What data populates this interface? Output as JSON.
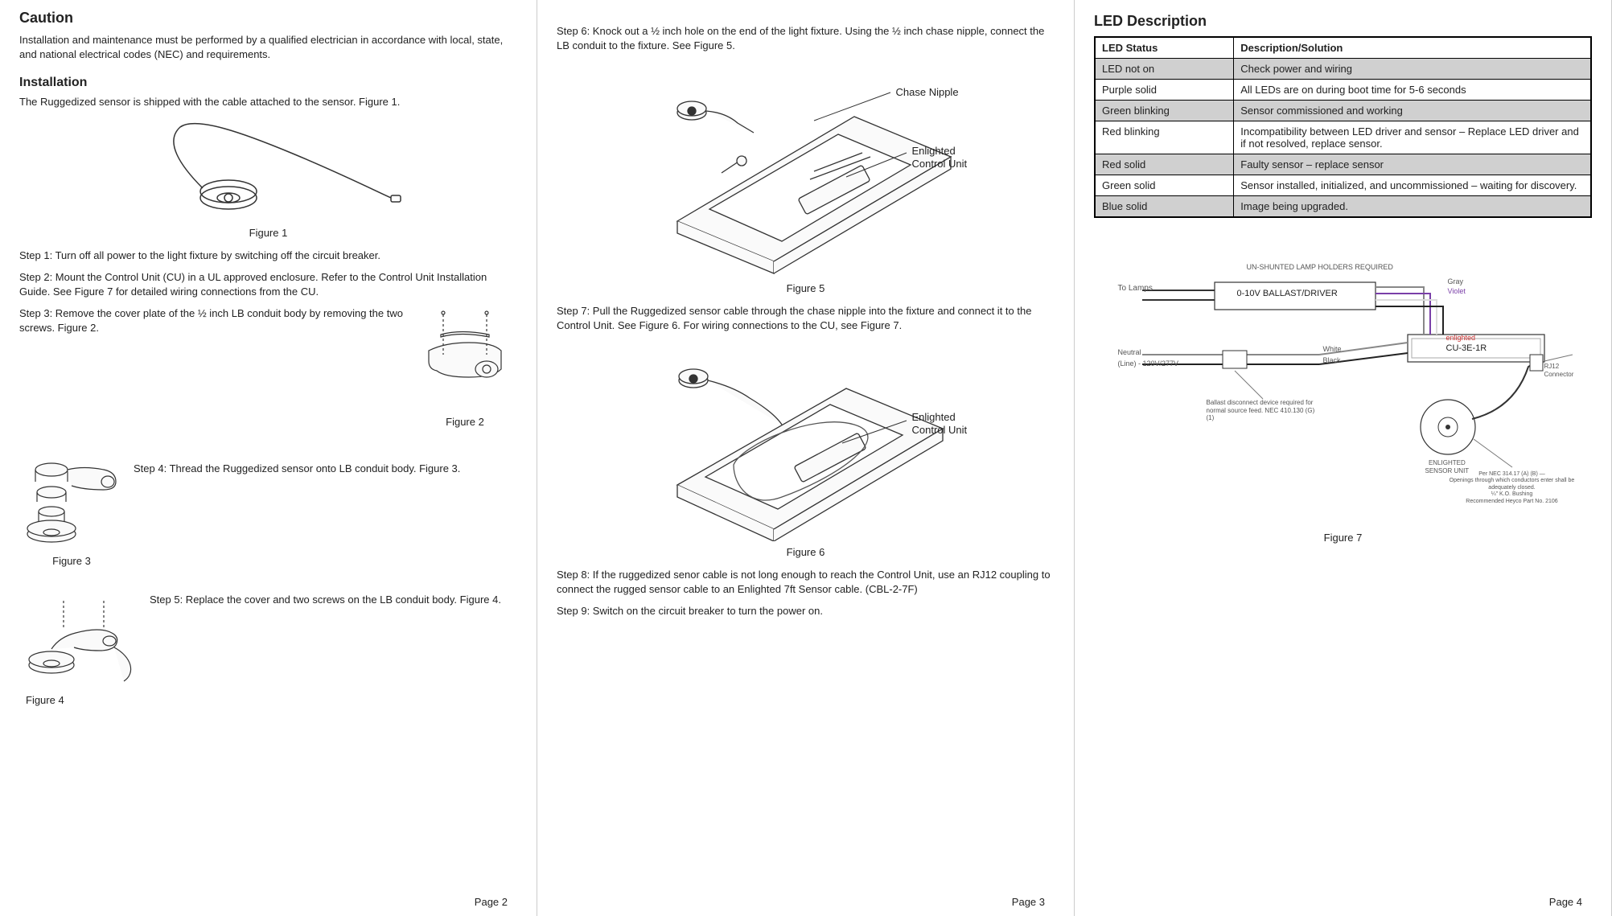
{
  "col1": {
    "caution_heading": "Caution",
    "caution_text": "Installation and maintenance must be performed by a qualified electrician in accordance with local, state, and national electrical codes (NEC) and requirements.",
    "install_heading": "Installation",
    "install_intro": "The Ruggedized sensor is shipped with the cable attached to the sensor. Figure 1.",
    "fig1": "Figure 1",
    "step1": "Step 1: Turn off all power to the light fixture by switching off the circuit breaker.",
    "step2": "Step 2: Mount the Control Unit (CU) in a UL approved enclosure. Refer to the Control Unit Installation Guide.  See Figure 7 for detailed wiring connections from the CU.",
    "step3": "Step 3: Remove the cover plate of the ½ inch LB conduit body by removing the two screws. Figure 2.",
    "fig2": "Figure 2",
    "step4": "Step 4: Thread the Ruggedized sensor onto LB conduit body. Figure 3.",
    "fig3": "Figure 3",
    "step5": "Step 5: Replace the cover and two screws on the LB conduit body. Figure 4.",
    "fig4": "Figure 4",
    "page": "Page 2"
  },
  "col2": {
    "step6": "Step 6: Knock out a ½ inch hole on the end of the light fixture. Using the ½ inch chase nipple, connect the LB conduit to the fixture. See Figure 5.",
    "fig5": "Figure 5",
    "callout_chase": "Chase Nipple",
    "callout_ecu": "Enlighted\nControl Unit",
    "step7": "Step 7: Pull the Ruggedized sensor cable through the chase nipple into the fixture and connect it to the Control Unit. See Figure 6. For wiring connections to the CU, see Figure 7.",
    "fig6": "Figure 6",
    "callout_ecu2": "Enlighted\nControl Unit",
    "step8": "Step 8: If the ruggedized senor cable is not long enough to reach the Control Unit, use an RJ12 coupling to connect the rugged sensor cable to an Enlighted 7ft Sensor cable. (CBL-2-7F)",
    "step9": "Step 9: Switch on the circuit breaker to turn the power on.",
    "page": "Page 3"
  },
  "col3": {
    "heading": "LED Description",
    "th1": "LED Status",
    "th2": "Description/Solution",
    "rows": [
      {
        "status": "LED not on",
        "desc": "Check power and wiring",
        "shade": true
      },
      {
        "status": "Purple solid",
        "desc": "All LEDs are on during boot time for 5-6 seconds",
        "shade": false
      },
      {
        "status": "Green blinking",
        "desc": "Sensor commissioned and working",
        "shade": true
      },
      {
        "status": "Red blinking",
        "desc": "Incompatibility between LED driver and sensor –  Replace LED driver and if not resolved, replace sensor.",
        "shade": false
      },
      {
        "status": "Red solid",
        "desc": "Faulty sensor – replace sensor",
        "shade": true
      },
      {
        "status": "Green solid",
        "desc": "Sensor installed, initialized, and uncommissioned – waiting for discovery.",
        "shade": false
      },
      {
        "status": "Blue solid",
        "desc": "Image being upgraded.",
        "shade": true
      }
    ],
    "fig7": "Figure 7",
    "wiring": {
      "top_note": "UN-SHUNTED LAMP HOLDERS REQUIRED",
      "to_lamps": "To Lamps",
      "ballast": "0-10V BALLAST/DRIVER",
      "neutral": "Neutral",
      "line": "(Line) - 120V/277V",
      "disc_note": "Ballast disconnect device required for normal source feed. NEC 410.130 (G) (1)",
      "white": "White",
      "black": "Black",
      "gray": "Gray",
      "violet": "Violet",
      "cu_label": "CU-3E-1R",
      "enlighted": "enlighted",
      "rj12": "RJ12 Connector",
      "sensor_unit": "ENLIGHTED\nSENSOR UNIT",
      "nec_note": "Per NEC 314.17 (A) (B) —\nOpenings through which conductors enter shall be adequately closed.\n¼\" K.O. Bushing\nRecommended Heyco Part No. 2106"
    },
    "page": "Page 4"
  },
  "colors": {
    "stroke": "#333333",
    "fill_light": "#fafafa",
    "purple": "#7a3fa8",
    "gray": "#808080"
  }
}
